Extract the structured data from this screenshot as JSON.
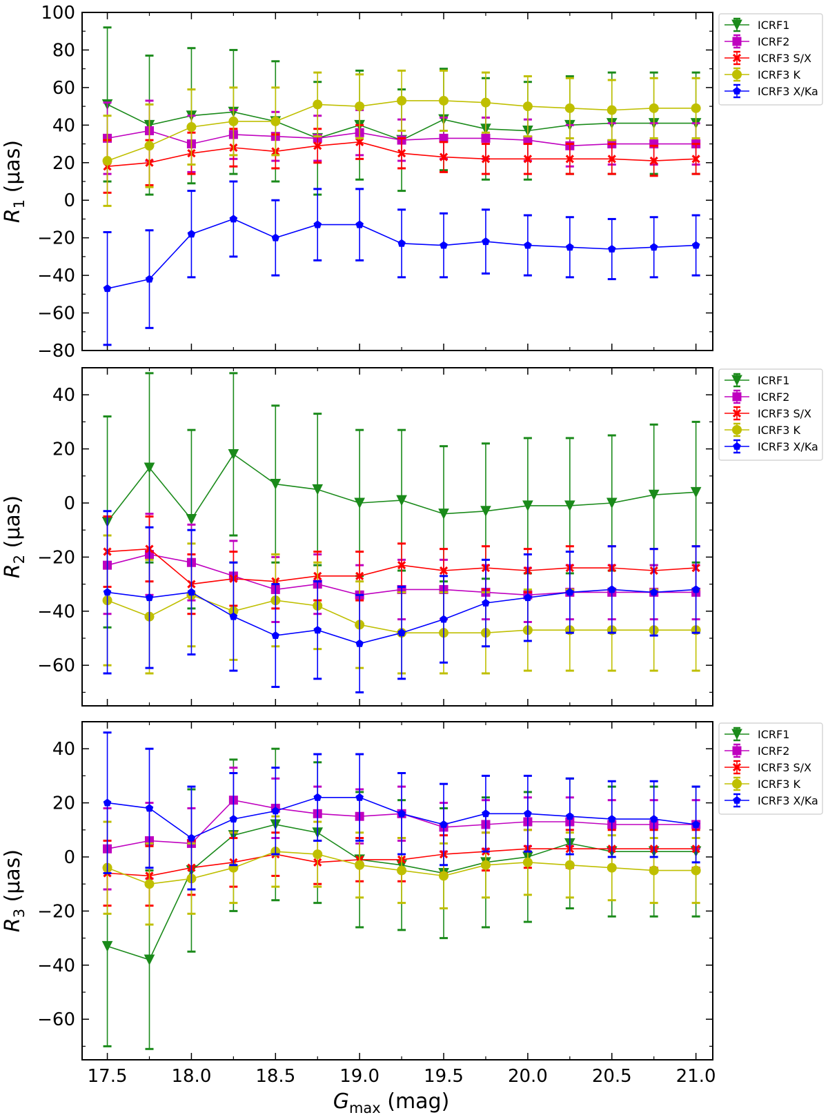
{
  "figure": {
    "xlabel_main": "G",
    "xlabel_sub": "max",
    "xlabel_unit": " (mag)"
  },
  "chart_data": [
    {
      "type": "line",
      "panel": "R1",
      "ylabel_main": "R",
      "ylabel_sub": "1",
      "ylabel_unit": " (µas)",
      "x": [
        17.5,
        17.75,
        18.0,
        18.25,
        18.5,
        18.75,
        19.0,
        19.25,
        19.5,
        19.75,
        20.0,
        20.25,
        20.5,
        20.75,
        21.0
      ],
      "xlim": [
        17.35,
        21.1
      ],
      "ylim": [
        -80,
        100
      ],
      "xticks": [
        "17.5",
        "18.0",
        "18.5",
        "19.0",
        "19.5",
        "20.0",
        "20.5",
        "21.0"
      ],
      "yticks": [
        "−80",
        "−60",
        "−40",
        "−20",
        "0",
        "20",
        "40",
        "60",
        "80",
        "100"
      ],
      "legend_position": "outside-right",
      "series": [
        {
          "name": "ICRF1",
          "color": "#1a8a1a",
          "marker": "triangle-down",
          "values": [
            51,
            40,
            45,
            47,
            42,
            33,
            40,
            32,
            43,
            38,
            37,
            40,
            41,
            41,
            41
          ],
          "errors": [
            41,
            37,
            36,
            33,
            32,
            30,
            29,
            27,
            27,
            27,
            26,
            26,
            27,
            27,
            27
          ]
        },
        {
          "name": "ICRF2",
          "color": "#bf00bf",
          "marker": "square",
          "values": [
            33,
            37,
            30,
            35,
            34,
            33,
            36,
            32,
            33,
            33,
            32,
            29,
            30,
            30,
            30
          ],
          "errors": [
            19,
            16,
            15,
            13,
            13,
            12,
            12,
            11,
            11,
            11,
            11,
            11,
            11,
            11,
            11
          ]
        },
        {
          "name": "ICRF3 S/X",
          "color": "#ff0000",
          "marker": "x",
          "values": [
            18,
            20,
            25,
            28,
            26,
            29,
            31,
            25,
            23,
            22,
            22,
            22,
            22,
            21,
            22
          ],
          "errors": [
            14,
            12,
            11,
            10,
            9,
            9,
            9,
            8,
            8,
            8,
            8,
            8,
            8,
            8,
            8
          ]
        },
        {
          "name": "ICRF3 K",
          "color": "#bfbf00",
          "marker": "circle",
          "values": [
            21,
            29,
            39,
            42,
            42,
            51,
            50,
            53,
            53,
            52,
            50,
            49,
            48,
            49,
            49
          ],
          "errors": [
            24,
            22,
            20,
            18,
            18,
            17,
            17,
            16,
            16,
            16,
            16,
            16,
            16,
            16,
            16
          ]
        },
        {
          "name": "ICRF3 X/Ka",
          "color": "#0000ff",
          "marker": "pentagon",
          "values": [
            -47,
            -42,
            -18,
            -10,
            -20,
            -13,
            -13,
            -23,
            -24,
            -22,
            -24,
            -25,
            -26,
            -25,
            -24
          ],
          "errors": [
            30,
            26,
            23,
            20,
            20,
            19,
            19,
            18,
            17,
            17,
            16,
            16,
            16,
            16,
            16
          ]
        }
      ]
    },
    {
      "type": "line",
      "panel": "R2",
      "ylabel_main": "R",
      "ylabel_sub": "2",
      "ylabel_unit": " (µas)",
      "x": [
        17.5,
        17.75,
        18.0,
        18.25,
        18.5,
        18.75,
        19.0,
        19.25,
        19.5,
        19.75,
        20.0,
        20.25,
        20.5,
        20.75,
        21.0
      ],
      "xlim": [
        17.35,
        21.1
      ],
      "ylim": [
        -75,
        50
      ],
      "xticks": [
        "17.5",
        "18.0",
        "18.5",
        "19.0",
        "19.5",
        "20.0",
        "20.5",
        "21.0"
      ],
      "yticks": [
        "−60",
        "−40",
        "−20",
        "0",
        "20",
        "40"
      ],
      "legend_position": "outside-right",
      "series": [
        {
          "name": "ICRF1",
          "color": "#1a8a1a",
          "marker": "triangle-down",
          "values": [
            -7,
            13,
            -6,
            18,
            7,
            5,
            0,
            1,
            -4,
            -3,
            -1,
            -1,
            0,
            3,
            4
          ],
          "errors": [
            39,
            35,
            33,
            30,
            29,
            28,
            27,
            26,
            25,
            25,
            25,
            25,
            25,
            26,
            26
          ]
        },
        {
          "name": "ICRF2",
          "color": "#bf00bf",
          "marker": "square",
          "values": [
            -23,
            -19,
            -22,
            -27,
            -32,
            -30,
            -34,
            -32,
            -32,
            -33,
            -34,
            -33,
            -33,
            -33,
            -33
          ],
          "errors": [
            18,
            15,
            14,
            13,
            12,
            11,
            11,
            11,
            11,
            10,
            10,
            10,
            10,
            10,
            10
          ]
        },
        {
          "name": "ICRF3 S/X",
          "color": "#ff0000",
          "marker": "x",
          "values": [
            -18,
            -17,
            -30,
            -28,
            -29,
            -27,
            -27,
            -23,
            -25,
            -24,
            -25,
            -24,
            -24,
            -25,
            -24
          ],
          "errors": [
            13,
            12,
            11,
            10,
            10,
            9,
            9,
            8,
            8,
            8,
            8,
            8,
            8,
            8,
            8
          ]
        },
        {
          "name": "ICRF3 K",
          "color": "#bfbf00",
          "marker": "circle",
          "values": [
            -36,
            -42,
            -34,
            -40,
            -36,
            -38,
            -45,
            -48,
            -48,
            -48,
            -47,
            -47,
            -47,
            -47,
            -47
          ],
          "errors": [
            24,
            21,
            19,
            18,
            17,
            16,
            16,
            15,
            15,
            15,
            15,
            15,
            15,
            15,
            15
          ]
        },
        {
          "name": "ICRF3 X/Ka",
          "color": "#0000ff",
          "marker": "pentagon",
          "values": [
            -33,
            -35,
            -33,
            -42,
            -49,
            -47,
            -52,
            -48,
            -43,
            -37,
            -35,
            -33,
            -32,
            -33,
            -32
          ],
          "errors": [
            30,
            26,
            23,
            20,
            19,
            18,
            18,
            17,
            16,
            16,
            16,
            15,
            16,
            16,
            16
          ]
        }
      ]
    },
    {
      "type": "line",
      "panel": "R3",
      "ylabel_main": "R",
      "ylabel_sub": "3",
      "ylabel_unit": " (µas)",
      "x": [
        17.5,
        17.75,
        18.0,
        18.25,
        18.5,
        18.75,
        19.0,
        19.25,
        19.5,
        19.75,
        20.0,
        20.25,
        20.5,
        20.75,
        21.0
      ],
      "xlim": [
        17.35,
        21.1
      ],
      "ylim": [
        -75,
        50
      ],
      "xticks": [
        "17.5",
        "18.0",
        "18.5",
        "19.0",
        "19.5",
        "20.0",
        "20.5",
        "21.0"
      ],
      "yticks": [
        "−60",
        "−40",
        "−20",
        "0",
        "20",
        "40"
      ],
      "legend_position": "outside-right",
      "series": [
        {
          "name": "ICRF1",
          "color": "#1a8a1a",
          "marker": "triangle-down",
          "values": [
            -33,
            -38,
            -5,
            8,
            12,
            9,
            -1,
            -3,
            -6,
            -2,
            0,
            5,
            2,
            2,
            2
          ],
          "errors": [
            37,
            33,
            30,
            28,
            28,
            26,
            25,
            24,
            24,
            24,
            24,
            24,
            24,
            24,
            24
          ]
        },
        {
          "name": "ICRF2",
          "color": "#bf00bf",
          "marker": "square",
          "values": [
            3,
            6,
            5,
            21,
            18,
            16,
            15,
            16,
            11,
            12,
            13,
            13,
            12,
            12,
            12
          ],
          "errors": [
            15,
            14,
            13,
            12,
            11,
            10,
            10,
            10,
            9,
            9,
            9,
            9,
            9,
            9,
            9
          ]
        },
        {
          "name": "ICRF3 S/X",
          "color": "#ff0000",
          "marker": "x",
          "values": [
            -6,
            -7,
            -4,
            -2,
            1,
            -2,
            -1,
            -1,
            1,
            2,
            3,
            3,
            3,
            3,
            3
          ],
          "errors": [
            12,
            11,
            10,
            9,
            8,
            8,
            8,
            8,
            7,
            7,
            7,
            7,
            7,
            7,
            7
          ]
        },
        {
          "name": "ICRF3 K",
          "color": "#bfbf00",
          "marker": "circle",
          "values": [
            -4,
            -10,
            -8,
            -4,
            2,
            1,
            -3,
            -5,
            -7,
            -3,
            -2,
            -3,
            -4,
            -5,
            -5
          ],
          "errors": [
            17,
            15,
            13,
            13,
            13,
            12,
            12,
            12,
            12,
            12,
            12,
            12,
            12,
            12,
            12
          ]
        },
        {
          "name": "ICRF3 X/Ka",
          "color": "#0000ff",
          "marker": "pentagon",
          "values": [
            20,
            18,
            7,
            14,
            17,
            22,
            22,
            16,
            12,
            16,
            16,
            15,
            14,
            14,
            12
          ],
          "errors": [
            26,
            22,
            19,
            17,
            16,
            16,
            16,
            15,
            15,
            14,
            14,
            14,
            14,
            14,
            14
          ]
        }
      ]
    }
  ]
}
